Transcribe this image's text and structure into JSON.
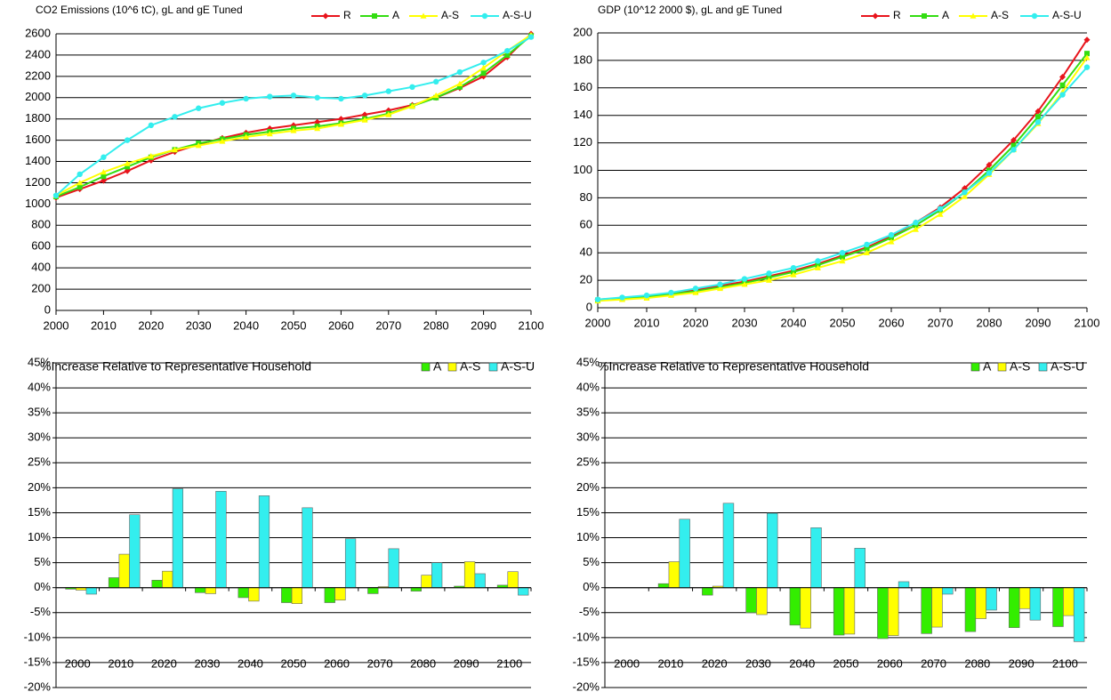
{
  "chart_data": [
    {
      "type": "line",
      "title": "CO2 Emissions (10^6 tC), gL and gE Tuned",
      "x": [
        2000,
        2005,
        2010,
        2015,
        2020,
        2025,
        2030,
        2035,
        2040,
        2045,
        2050,
        2055,
        2060,
        2065,
        2070,
        2075,
        2080,
        2085,
        2090,
        2095,
        2100
      ],
      "series": [
        {
          "name": "R",
          "color": "#e8141c",
          "marker": "diamond",
          "values": [
            1060,
            1140,
            1220,
            1310,
            1410,
            1490,
            1560,
            1620,
            1670,
            1710,
            1740,
            1770,
            1800,
            1840,
            1880,
            1930,
            2000,
            2090,
            2200,
            2380,
            2600
          ]
        },
        {
          "name": "A",
          "color": "#33dd11",
          "marker": "square",
          "values": [
            1070,
            1160,
            1260,
            1350,
            1440,
            1510,
            1570,
            1610,
            1650,
            1680,
            1710,
            1730,
            1760,
            1800,
            1850,
            1920,
            2000,
            2100,
            2230,
            2400,
            2580
          ]
        },
        {
          "name": "A-S",
          "color": "#ffff00",
          "marker": "triangle",
          "values": [
            1080,
            1200,
            1300,
            1380,
            1450,
            1510,
            1550,
            1590,
            1630,
            1660,
            1690,
            1710,
            1750,
            1790,
            1840,
            1920,
            2020,
            2130,
            2280,
            2440,
            2590
          ]
        },
        {
          "name": "A-S-U",
          "color": "#33eeee",
          "marker": "circle",
          "values": [
            1080,
            1280,
            1440,
            1600,
            1740,
            1820,
            1900,
            1950,
            1990,
            2010,
            2020,
            2000,
            1990,
            2020,
            2060,
            2100,
            2150,
            2240,
            2330,
            2440,
            2570
          ]
        }
      ],
      "xlim": [
        2000,
        2100
      ],
      "xticks": [
        2000,
        2010,
        2020,
        2030,
        2040,
        2050,
        2060,
        2070,
        2080,
        2090,
        2100
      ],
      "ylim": [
        0,
        2600
      ],
      "yticks": [
        0,
        200,
        400,
        600,
        800,
        1000,
        1200,
        1400,
        1600,
        1800,
        2000,
        2200,
        2400,
        2600
      ],
      "grid": true,
      "legend": "top-right"
    },
    {
      "type": "line",
      "title": "GDP (10^12 2000 $), gL and gE Tuned",
      "x": [
        2000,
        2005,
        2010,
        2015,
        2020,
        2025,
        2030,
        2035,
        2040,
        2045,
        2050,
        2055,
        2060,
        2065,
        2070,
        2075,
        2080,
        2085,
        2090,
        2095,
        2100
      ],
      "series": [
        {
          "name": "R",
          "color": "#e8141c",
          "marker": "diamond",
          "values": [
            6,
            7,
            8,
            10,
            13,
            16,
            19,
            23,
            27,
            32,
            38,
            44,
            52,
            62,
            73,
            87,
            104,
            122,
            143,
            168,
            195
          ]
        },
        {
          "name": "A",
          "color": "#33dd11",
          "marker": "square",
          "values": [
            5.5,
            6.5,
            8,
            10,
            12,
            15,
            18,
            22,
            26,
            31,
            37,
            43,
            51,
            60,
            71,
            84,
            100,
            118,
            139,
            162,
            185
          ]
        },
        {
          "name": "A-S",
          "color": "#ffff00",
          "marker": "triangle",
          "values": [
            5,
            6,
            7,
            9,
            11,
            14,
            17,
            20,
            24,
            29,
            34,
            40,
            48,
            57,
            68,
            81,
            97,
            115,
            134,
            157,
            182
          ]
        },
        {
          "name": "A-S-U",
          "color": "#33eeee",
          "marker": "circle",
          "values": [
            6,
            7.5,
            9,
            11,
            14,
            17,
            21,
            25,
            29,
            34,
            40,
            46,
            53,
            62,
            72,
            84,
            98,
            115,
            135,
            155,
            175
          ]
        }
      ],
      "xlim": [
        2000,
        2100
      ],
      "xticks": [
        2000,
        2010,
        2020,
        2030,
        2040,
        2050,
        2060,
        2070,
        2080,
        2090,
        2100
      ],
      "ylim": [
        0,
        200
      ],
      "yticks": [
        0,
        20,
        40,
        60,
        80,
        100,
        120,
        140,
        160,
        180,
        200
      ],
      "grid": true,
      "legend": "top-right"
    },
    {
      "type": "bar",
      "title": "%Increase Relative to Representative Household",
      "categories": [
        "2000",
        "2010",
        "2020",
        "2030",
        "2040",
        "2050",
        "2060",
        "2070",
        "2080",
        "2090",
        "2100"
      ],
      "series": [
        {
          "name": "A",
          "color": "#33ee00",
          "values": [
            -0.3,
            2,
            1.5,
            -1,
            -2,
            -3,
            -3,
            -1.2,
            -0.7,
            0.3,
            0.5
          ]
        },
        {
          "name": "A-S",
          "color": "#ffff00",
          "values": [
            -0.5,
            6.7,
            3.3,
            -1.2,
            -2.7,
            -3.2,
            -2.5,
            0.2,
            2.5,
            5.2,
            3.2
          ]
        },
        {
          "name": "A-S-U",
          "color": "#33eeee",
          "values": [
            -1.3,
            14.6,
            19.8,
            19.3,
            18.4,
            16,
            9.8,
            7.8,
            5,
            2.8,
            -1.5
          ]
        }
      ],
      "ylim": [
        -20,
        45
      ],
      "yticks": [
        {
          "value": -20,
          "label": "-20%"
        },
        {
          "value": -15,
          "label": "-15%"
        },
        {
          "value": -10,
          "label": "-10%"
        },
        {
          "value": -5,
          "label": "-5%"
        },
        {
          "value": 0,
          "label": "0%"
        },
        {
          "value": 5,
          "label": "5%"
        },
        {
          "value": 10,
          "label": "10%"
        },
        {
          "value": 15,
          "label": "15%"
        },
        {
          "value": 20,
          "label": "20%"
        },
        {
          "value": 25,
          "label": "25%"
        },
        {
          "value": 30,
          "label": "30%"
        },
        {
          "value": 35,
          "label": "35%"
        },
        {
          "value": 40,
          "label": "40%"
        },
        {
          "value": 45,
          "label": "45%"
        }
      ],
      "grid": true,
      "legend": "top-right"
    },
    {
      "type": "bar",
      "title": "%Increase Relative to Representative Household",
      "categories": [
        "2000",
        "2010",
        "2020",
        "2030",
        "2040",
        "2050",
        "2060",
        "2070",
        "2080",
        "2090",
        "2100"
      ],
      "series": [
        {
          "name": "A",
          "color": "#33ee00",
          "values": [
            0,
            0.8,
            -1.5,
            -5,
            -7.5,
            -9.5,
            -10.2,
            -9.2,
            -8.8,
            -8,
            -7.8
          ]
        },
        {
          "name": "A-S",
          "color": "#ffff00",
          "values": [
            0,
            5.2,
            0.3,
            -5.4,
            -8.1,
            -9.3,
            -9.6,
            -7.9,
            -6.2,
            -4.2,
            -5.6
          ]
        },
        {
          "name": "A-S-U",
          "color": "#33eeee",
          "values": [
            0,
            13.7,
            16.9,
            14.9,
            12,
            7.9,
            1.2,
            -1.3,
            -4.5,
            -6.5,
            -10.8
          ]
        }
      ],
      "ylim": [
        -20,
        45
      ],
      "yticks": [
        {
          "value": -20,
          "label": "-20%"
        },
        {
          "value": -15,
          "label": "-15%"
        },
        {
          "value": -10,
          "label": "-10%"
        },
        {
          "value": -5,
          "label": "-5%"
        },
        {
          "value": 0,
          "label": "0%"
        },
        {
          "value": 5,
          "label": "5%"
        },
        {
          "value": 10,
          "label": "10%"
        },
        {
          "value": 15,
          "label": "15%"
        },
        {
          "value": 20,
          "label": "20%"
        },
        {
          "value": 25,
          "label": "25%"
        },
        {
          "value": 30,
          "label": "30%"
        },
        {
          "value": 35,
          "label": "35%"
        },
        {
          "value": 40,
          "label": "40%"
        },
        {
          "value": 45,
          "label": "45%"
        }
      ],
      "grid": true,
      "legend": "top-right"
    }
  ]
}
